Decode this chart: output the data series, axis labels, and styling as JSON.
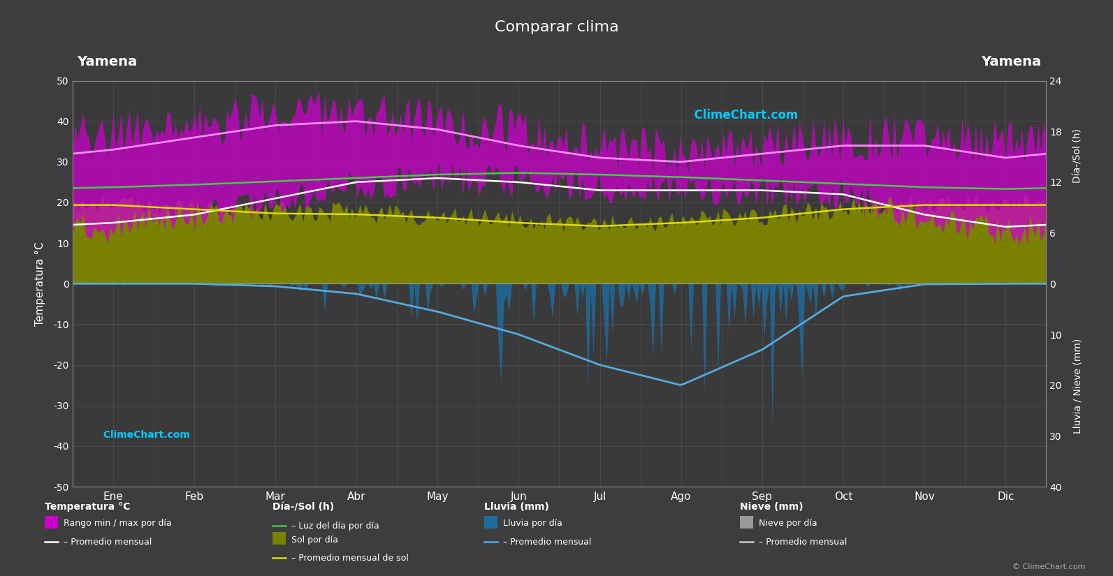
{
  "title": "Comparar clima",
  "location_left": "Yamena",
  "location_right": "Yamena",
  "bg_color": "#3d3d3d",
  "plot_bg_color": "#3a3a3a",
  "grid_color": "#606060",
  "text_color": "#ffffff",
  "months": [
    "Ene",
    "Feb",
    "Mar",
    "Abr",
    "May",
    "Jun",
    "Jul",
    "Ago",
    "Sep",
    "Oct",
    "Nov",
    "Dic"
  ],
  "temp_ylim": [
    -50,
    50
  ],
  "temp_max_daily_centers": [
    37,
    39,
    42,
    42,
    40,
    38,
    34,
    32,
    34,
    36,
    36,
    35
  ],
  "temp_min_daily_centers": [
    14,
    16,
    20,
    24,
    26,
    25,
    24,
    23,
    23,
    22,
    16,
    13
  ],
  "temp_monthly_avg_max": [
    33,
    36,
    39,
    40,
    38,
    34,
    31,
    30,
    32,
    34,
    34,
    31
  ],
  "temp_monthly_avg_min": [
    15,
    17,
    21,
    25,
    26,
    25,
    23,
    23,
    23,
    22,
    17,
    14
  ],
  "daylight_hours": [
    11.4,
    11.7,
    12.1,
    12.5,
    12.9,
    13.1,
    12.9,
    12.6,
    12.2,
    11.8,
    11.4,
    11.2
  ],
  "sunshine_hours_daily": [
    9.5,
    9.0,
    8.5,
    8.5,
    8.0,
    7.5,
    7.0,
    7.5,
    8.0,
    9.0,
    9.5,
    9.5
  ],
  "sunshine_monthly_avg": [
    9.3,
    8.8,
    8.3,
    8.2,
    7.8,
    7.2,
    6.8,
    7.2,
    7.8,
    8.8,
    9.3,
    9.3
  ],
  "rain_monthly_avg_mm": [
    0.0,
    0.0,
    0.5,
    2.0,
    5.5,
    10.0,
    16.0,
    20.0,
    13.0,
    2.5,
    0.1,
    0.0
  ],
  "rain_daily_scale_mm": [
    0.1,
    0.1,
    0.5,
    1.5,
    4.0,
    8.0,
    10.0,
    14.0,
    9.0,
    2.0,
    0.2,
    0.1
  ],
  "rain_scale_factor": 1.25,
  "sol_scale": 2.0833,
  "rain_inv_scale": 1.25,
  "temp_max_noise": 6,
  "temp_min_noise": 4,
  "sun_noise": 1.2,
  "rain_noise_scale": 0.8
}
